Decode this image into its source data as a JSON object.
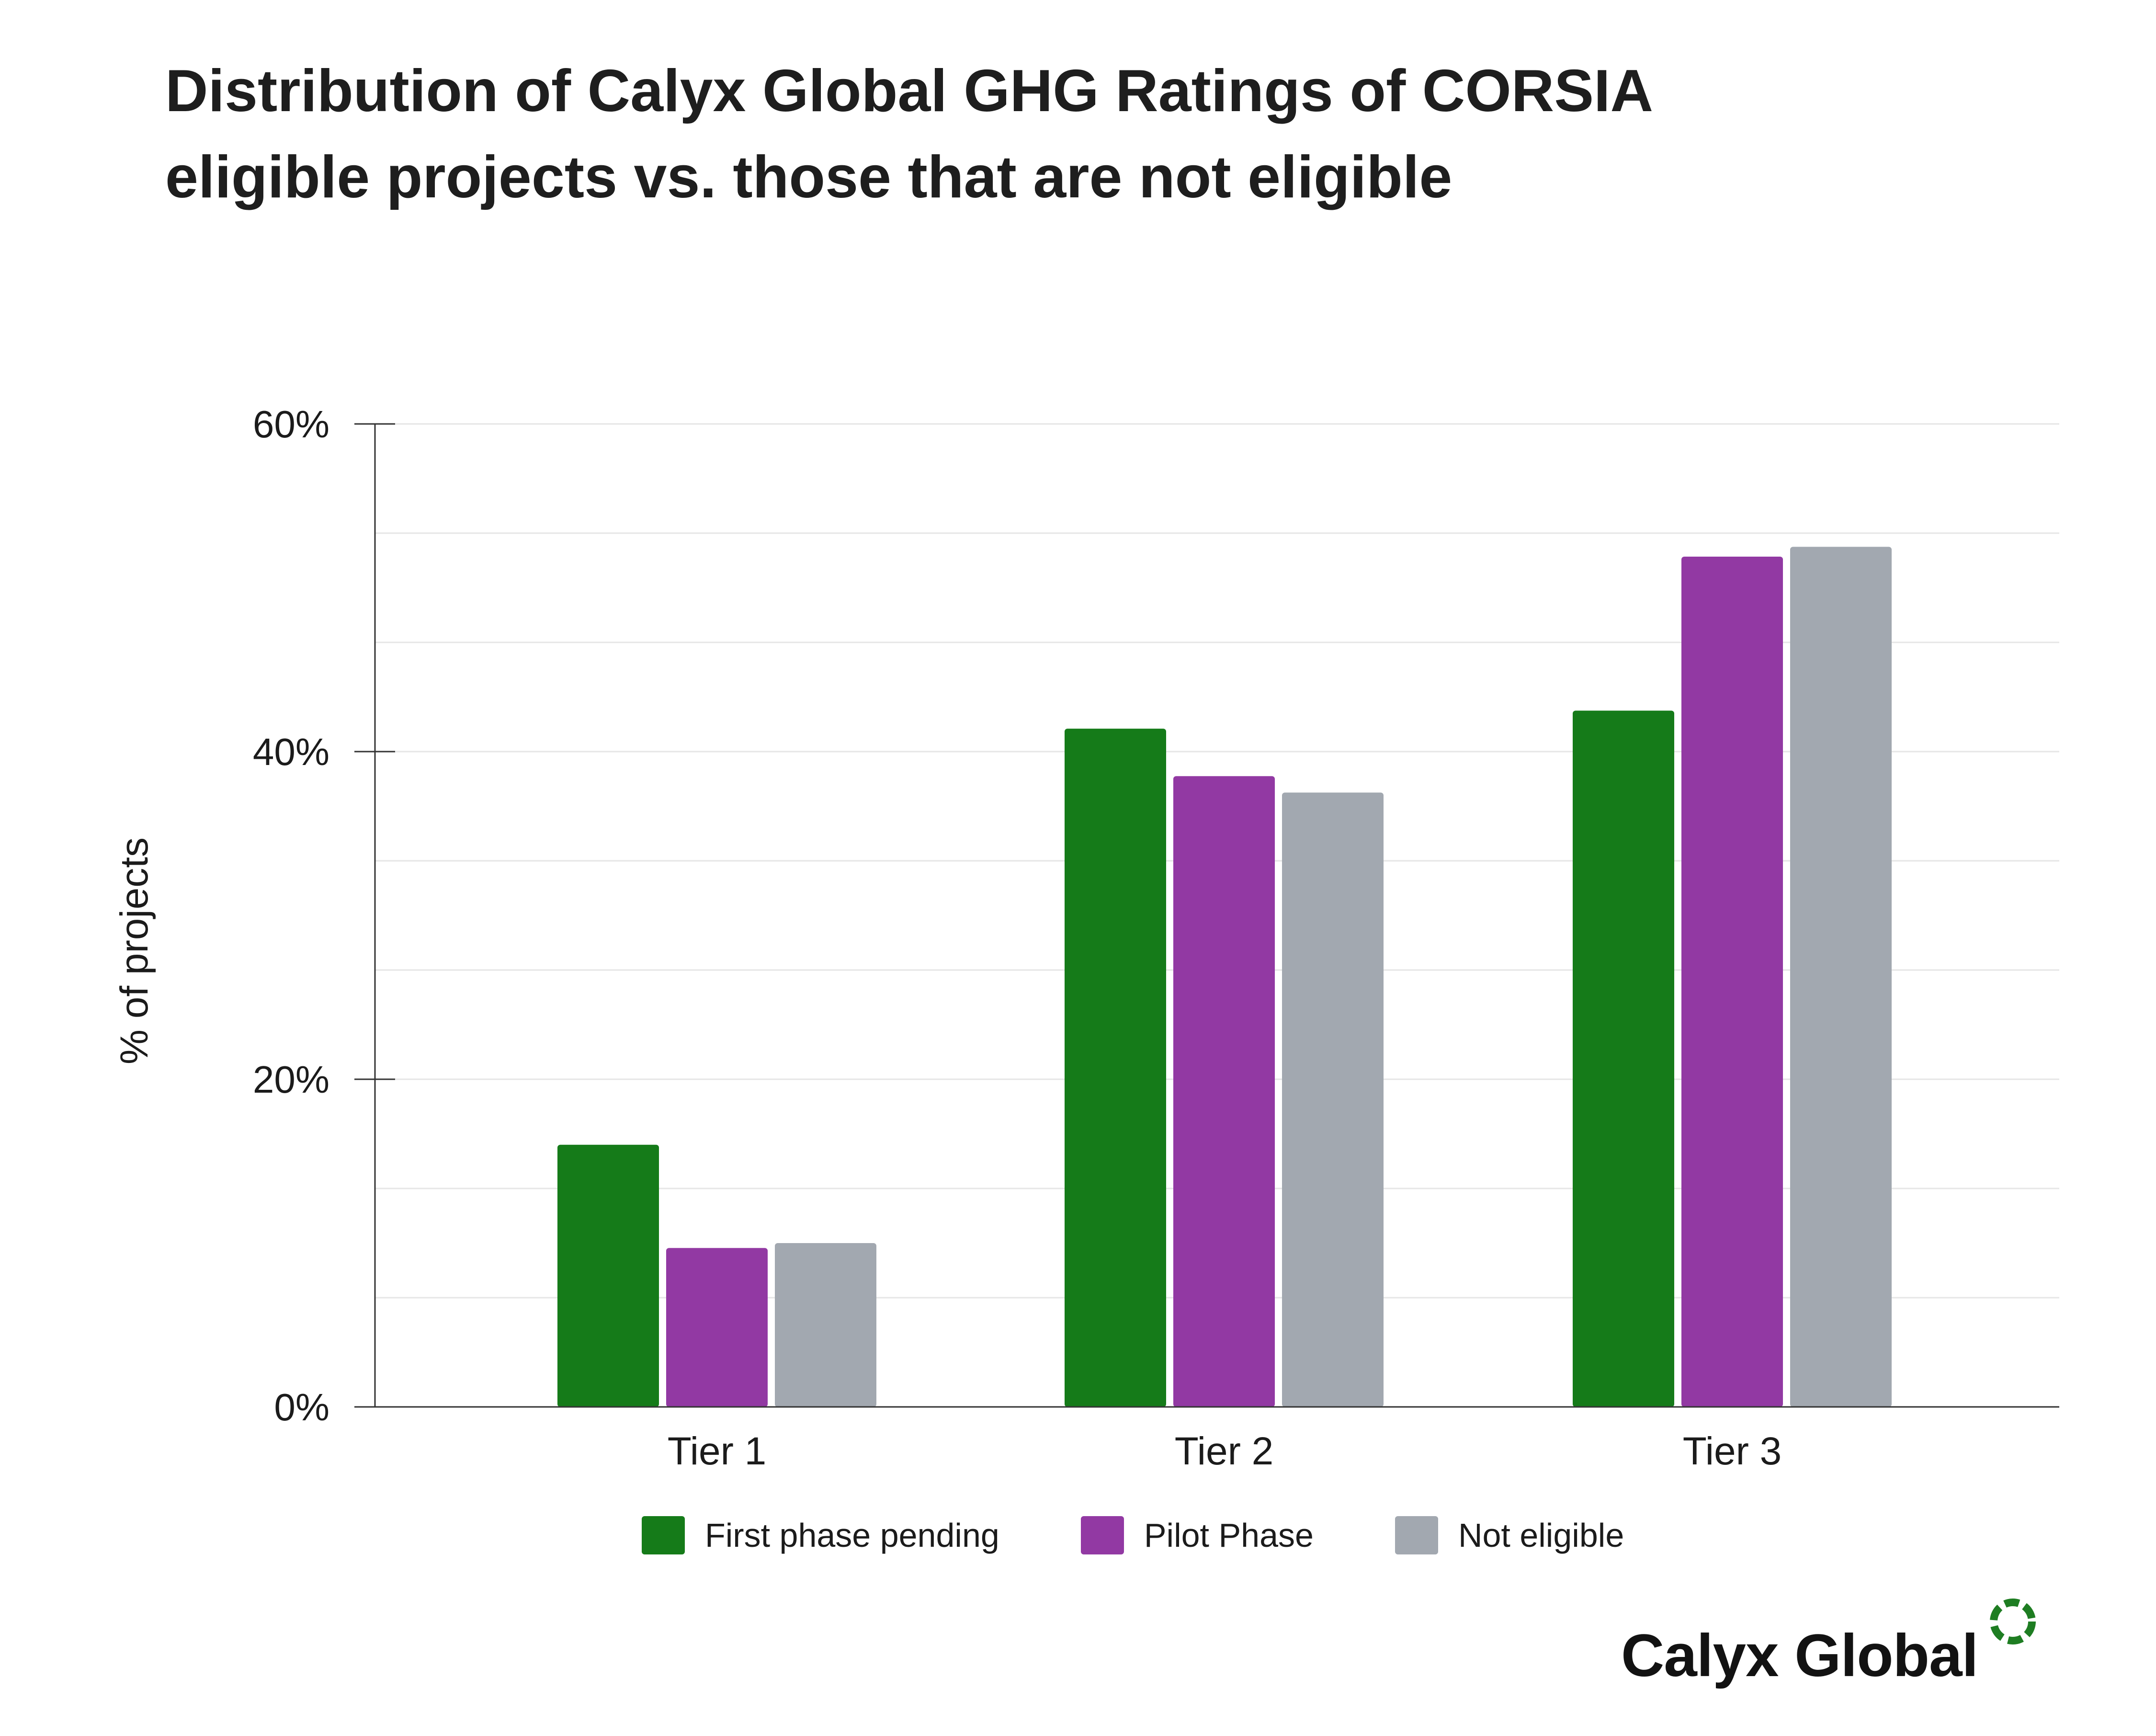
{
  "title_lines": [
    "Distribution of Calyx Global GHG Ratings of CORSIA",
    "eligible projects vs. those that are not eligible"
  ],
  "chart_data": {
    "type": "bar",
    "title": "Distribution of Calyx Global GHG Ratings of CORSIA eligible projects vs. those that are not eligible",
    "xlabel": "",
    "ylabel": "% of projects",
    "ylim": [
      0,
      60
    ],
    "y_ticks": [
      0,
      20,
      40,
      60
    ],
    "y_tick_labels": [
      "0%",
      "20%",
      "40%",
      "60%"
    ],
    "grid": true,
    "legend_position": "bottom",
    "categories": [
      "Tier 1",
      "Tier 2",
      "Tier 3"
    ],
    "series": [
      {
        "name": "First phase pending",
        "color": "#157b19",
        "values": [
          16,
          41.4,
          42.5
        ]
      },
      {
        "name": "Pilot Phase",
        "color": "#9239a3",
        "values": [
          9.7,
          38.5,
          51.9
        ]
      },
      {
        "name": "Not eligible",
        "color": "#a2a8b0",
        "values": [
          10,
          37.5,
          52.5
        ]
      }
    ]
  },
  "legend": [
    {
      "label": "First phase pending",
      "color": "#157b19"
    },
    {
      "label": "Pilot Phase",
      "color": "#9239a3"
    },
    {
      "label": "Not eligible",
      "color": "#a2a8b0"
    }
  ],
  "logo": {
    "text": "Calyx Global",
    "mark_color": "#1e7d22",
    "icon": "dashed-circle-icon"
  }
}
